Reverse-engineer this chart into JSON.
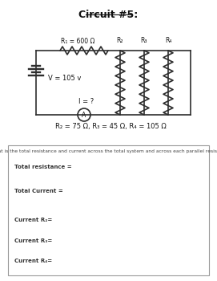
{
  "title": "Circuit #5:",
  "title_fontsize": 9,
  "bg_color": "#ffffff",
  "circuit_label_r1": "R₁ = 600 Ω",
  "circuit_label_v": "V = 105 v",
  "circuit_label_i": "I = ?",
  "circuit_label_r_values": "R₂ = 75 Ω, R₃ = 45 Ω, R₄ = 105 Ω",
  "r2_label": "R₂",
  "r3_label": "R₃",
  "r4_label": "R₄",
  "question": "What is the total resistance and current across the total system and across each parallel resistor?",
  "fields": [
    "Total resistance =",
    "Total Current =",
    "Current R₂=",
    "Current R₃=",
    "Current R₄="
  ],
  "wire_color": "#2d2d2d",
  "box_edge_color": "#999999"
}
